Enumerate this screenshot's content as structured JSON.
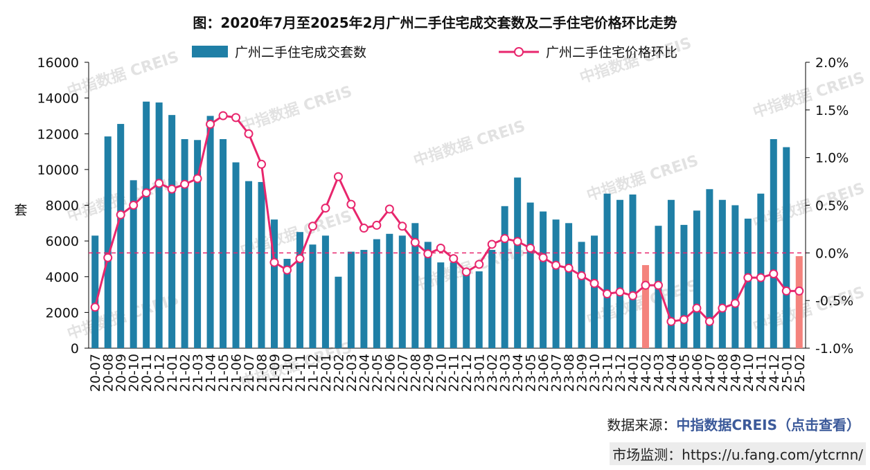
{
  "chart_data": {
    "type": "bar-line",
    "title": "图：2020年7月至2025年2月广州二手住宅成交套数及二手住宅价格环比走势",
    "y_label": "套",
    "watermark": "中指数据 CREIS",
    "categories": [
      "20-07",
      "20-08",
      "20-09",
      "20-10",
      "20-11",
      "20-12",
      "21-01",
      "21-02",
      "21-03",
      "21-04",
      "21-05",
      "21-06",
      "21-07",
      "21-08",
      "21-09",
      "21-10",
      "21-11",
      "21-12",
      "22-01",
      "22-02",
      "22-03",
      "22-04",
      "22-05",
      "22-06",
      "22-07",
      "22-08",
      "22-09",
      "22-10",
      "22-11",
      "22-12",
      "23-01",
      "23-02",
      "23-03",
      "23-04",
      "23-05",
      "23-06",
      "23-07",
      "23-08",
      "23-09",
      "23-10",
      "23-11",
      "23-12",
      "24-01",
      "24-02",
      "24-03",
      "24-04",
      "24-05",
      "24-06",
      "24-07",
      "24-08",
      "24-09",
      "24-10",
      "24-11",
      "24-12",
      "25-01",
      "25-02"
    ],
    "series": [
      {
        "name": "广州二手住宅成交套数",
        "type": "bar",
        "color": "#1f7fa6",
        "highlight_color": "#f4837d",
        "highlight": [
          43,
          55
        ],
        "values": [
          6300,
          11850,
          12550,
          9400,
          13800,
          13750,
          13050,
          11700,
          11650,
          13000,
          11700,
          10400,
          9350,
          9300,
          7200,
          5000,
          6500,
          5800,
          6300,
          4000,
          5400,
          5500,
          6100,
          6400,
          6300,
          7000,
          5950,
          4800,
          4800,
          4400,
          4300,
          5500,
          7950,
          9550,
          8150,
          7650,
          7200,
          7000,
          5950,
          6300,
          8650,
          8300,
          8600,
          4650,
          6850,
          8300,
          6900,
          7700,
          8900,
          8300,
          8000,
          7250,
          8650,
          11700,
          11250,
          5150
        ]
      },
      {
        "name": "广州二手住宅价格环比",
        "type": "line",
        "axis": "y2",
        "color": "#e8266d",
        "values": [
          -0.57,
          -0.05,
          0.4,
          0.5,
          0.63,
          0.73,
          0.67,
          0.72,
          0.78,
          1.35,
          1.44,
          1.42,
          1.25,
          0.93,
          -0.1,
          -0.18,
          -0.06,
          0.28,
          0.47,
          0.8,
          0.51,
          0.26,
          0.29,
          0.46,
          0.28,
          0.11,
          -0.01,
          0.05,
          -0.06,
          -0.2,
          -0.12,
          0.09,
          0.15,
          0.12,
          0.05,
          -0.05,
          -0.13,
          -0.16,
          -0.24,
          -0.32,
          -0.43,
          -0.41,
          -0.45,
          -0.34,
          -0.34,
          -0.72,
          -0.7,
          -0.58,
          -0.72,
          -0.58,
          -0.53,
          -0.26,
          -0.26,
          -0.22,
          -0.4,
          -0.4
        ]
      }
    ],
    "ylim": [
      0,
      16000
    ],
    "yticks": [
      0,
      2000,
      4000,
      6000,
      8000,
      10000,
      12000,
      14000,
      16000
    ],
    "y2lim": [
      -1.0,
      2.0
    ],
    "y2ticks": [
      {
        "value": -1.0,
        "label": "-1.0%"
      },
      {
        "value": -0.5,
        "label": "-0.5%"
      },
      {
        "value": 0,
        "label": "0.0%"
      },
      {
        "value": 0.5,
        "label": "0.5%"
      },
      {
        "value": 1.0,
        "label": "1.0%"
      },
      {
        "value": 1.5,
        "label": "1.5%"
      },
      {
        "value": 2.0,
        "label": "2.0%"
      }
    ],
    "zero_line": true,
    "legend": "top"
  },
  "footer": {
    "source_label": "数据来源：",
    "source_link": "中指数据CREIS（点击查看）",
    "monitor": "市场监测：https://u.fang.com/ytcrnn/"
  }
}
